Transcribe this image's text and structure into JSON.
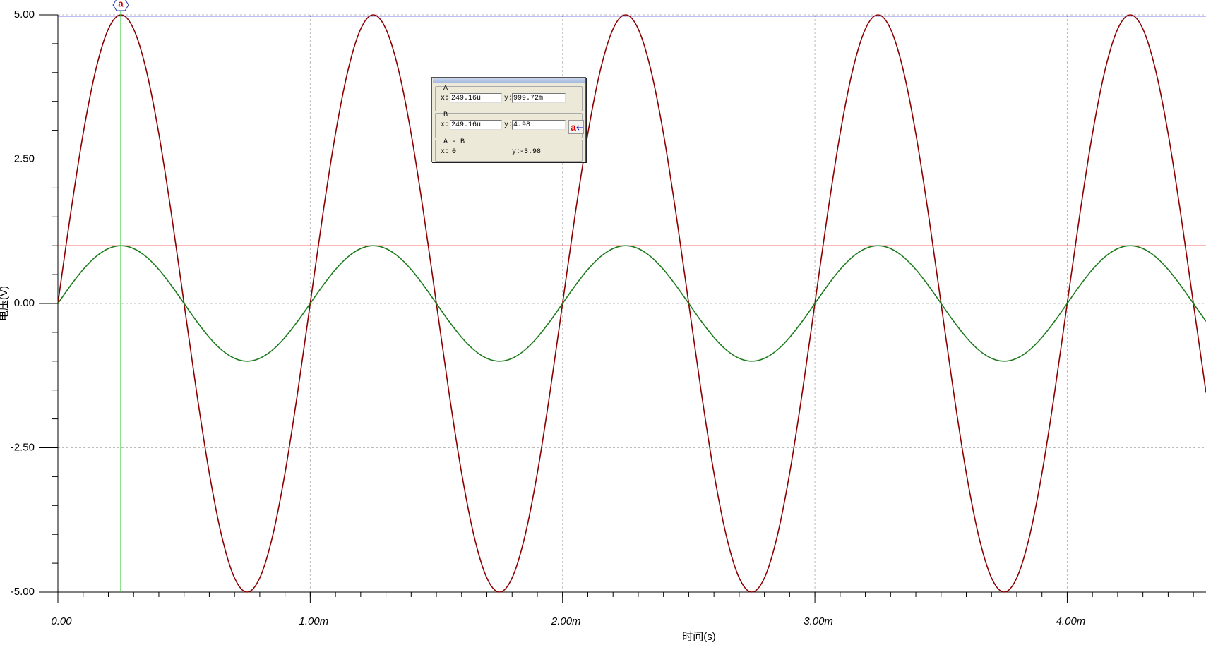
{
  "chart_data": {
    "type": "line",
    "y_label": "电压(V)",
    "x_label": "时间(s)",
    "x": [
      0,
      5e-05,
      0.0001,
      0.00015,
      0.0002,
      0.00025,
      0.0003,
      0.00035,
      0.0004,
      0.00045,
      0.0005,
      0.00055,
      0.0006,
      0.00065,
      0.0007,
      0.00075,
      0.0008,
      0.00085,
      0.0009,
      0.00095,
      0.001,
      0.00105,
      0.0011,
      0.00115,
      0.0012,
      0.00125,
      0.0013,
      0.00135,
      0.0014,
      0.00145,
      0.0015,
      0.00155,
      0.0016,
      0.00165,
      0.0017,
      0.00175,
      0.0018,
      0.00185,
      0.0019,
      0.00195,
      0.002,
      0.00205,
      0.0021,
      0.00215,
      0.0022,
      0.00225,
      0.0023,
      0.00235,
      0.0024,
      0.00245,
      0.0025,
      0.00255,
      0.0026,
      0.00265,
      0.0027,
      0.00275,
      0.0028,
      0.00285,
      0.0029,
      0.00295,
      0.003,
      0.00305,
      0.0031,
      0.00315,
      0.0032,
      0.00325,
      0.0033,
      0.00335,
      0.0034,
      0.00345,
      0.0035,
      0.00355,
      0.0036,
      0.00365,
      0.0037,
      0.00375,
      0.0038,
      0.00385,
      0.0039,
      0.00395,
      0.004,
      0.00405,
      0.0041,
      0.00415,
      0.0042,
      0.00425,
      0.0043,
      0.00435,
      0.0044,
      0.00445,
      0.0045,
      0.00455
    ],
    "series": [
      {
        "color": "#8b0000",
        "values": [
          0,
          1.545,
          2.939,
          4.045,
          4.755,
          5,
          4.755,
          4.045,
          2.939,
          1.545,
          0,
          -1.545,
          -2.939,
          -4.045,
          -4.755,
          -5,
          -4.755,
          -4.045,
          -2.939,
          -1.545,
          0,
          1.545,
          2.939,
          4.045,
          4.755,
          5,
          4.755,
          4.045,
          2.939,
          1.545,
          0,
          -1.545,
          -2.939,
          -4.045,
          -4.755,
          -5,
          -4.755,
          -4.045,
          -2.939,
          -1.545,
          0,
          1.545,
          2.939,
          4.045,
          4.755,
          5,
          4.755,
          4.045,
          2.939,
          1.545,
          0,
          -1.545,
          -2.939,
          -4.045,
          -4.755,
          -5,
          -4.755,
          -4.045,
          -2.939,
          -1.545,
          0,
          1.545,
          2.939,
          4.045,
          4.755,
          5,
          4.755,
          4.045,
          2.939,
          1.545,
          0,
          -1.545,
          -2.939,
          -4.045,
          -4.755,
          -5,
          -4.755,
          -4.045,
          -2.939,
          -1.545,
          0,
          1.545,
          2.939,
          4.045,
          4.755,
          5,
          4.755,
          4.045,
          2.939,
          1.545,
          0,
          -1.545
        ]
      },
      {
        "color": "#1b7a1b",
        "values": [
          0,
          0.309,
          0.588,
          0.809,
          0.951,
          1,
          0.951,
          0.809,
          0.588,
          0.309,
          0,
          -0.309,
          -0.588,
          -0.809,
          -0.951,
          -1,
          -0.951,
          -0.809,
          -0.588,
          -0.309,
          0,
          0.309,
          0.588,
          0.809,
          0.951,
          1,
          0.951,
          0.809,
          0.588,
          0.309,
          0,
          -0.309,
          -0.588,
          -0.809,
          -0.951,
          -1,
          -0.951,
          -0.809,
          -0.588,
          -0.309,
          0,
          0.309,
          0.588,
          0.809,
          0.951,
          1,
          0.951,
          0.809,
          0.588,
          0.309,
          0,
          -0.309,
          -0.588,
          -0.809,
          -0.951,
          -1,
          -0.951,
          -0.809,
          -0.588,
          -0.309,
          0,
          0.309,
          0.588,
          0.809,
          0.951,
          1,
          0.951,
          0.809,
          0.588,
          0.309,
          0,
          -0.309,
          -0.588,
          -0.809,
          -0.951,
          -1,
          -0.951,
          -0.809,
          -0.588,
          -0.309,
          0,
          0.309,
          0.588,
          0.809,
          0.951,
          1,
          0.951,
          0.809,
          0.588,
          0.309,
          0,
          -0.309
        ]
      }
    ],
    "xlim": [
      0,
      0.00455
    ],
    "ylim": [
      -5,
      5
    ],
    "xticks": [
      {
        "value": 0,
        "label": "0.00"
      },
      {
        "value": 0.001,
        "label": "1.00m"
      },
      {
        "value": 0.002,
        "label": "2.00m"
      },
      {
        "value": 0.003,
        "label": "3.00m"
      },
      {
        "value": 0.004,
        "label": "4.00m"
      }
    ],
    "yticks": [
      {
        "value": 5,
        "label": "5.00"
      },
      {
        "value": 2.5,
        "label": "2.50"
      },
      {
        "value": 0,
        "label": "0.00"
      },
      {
        "value": -2.5,
        "label": "-2.50"
      },
      {
        "value": -5,
        "label": "-5.00"
      }
    ],
    "xminorticks": [
      0,
      0.0001,
      0.0002,
      0.0003,
      0.0004,
      0.0005,
      0.0006,
      0.0007,
      0.0008,
      0.0009,
      0.001,
      0.0011,
      0.0012,
      0.0013,
      0.0014,
      0.0015,
      0.0016,
      0.0017,
      0.0018,
      0.0019,
      0.002,
      0.0021,
      0.0022,
      0.0023,
      0.0024,
      0.0025,
      0.0026,
      0.0027,
      0.0028,
      0.0029,
      0.003,
      0.0031,
      0.0032,
      0.0033,
      0.0034,
      0.0035,
      0.0036,
      0.0037,
      0.0038,
      0.0039,
      0.004,
      0.0041,
      0.0042,
      0.0043,
      0.0044,
      0.0045
    ],
    "yminorticks": [
      -5,
      -4.5,
      -4,
      -3.5,
      -3,
      -2.5,
      -2,
      -1.5,
      -1,
      -0.5,
      0,
      0.5,
      1,
      1.5,
      2,
      2.5,
      3,
      3.5,
      4,
      4.5,
      5
    ],
    "grid": true,
    "cursors": {
      "x": {
        "value": 0.00024916,
        "label": "249.16u"
      },
      "a_y": {
        "value": 0.99972,
        "label": "999.72m"
      },
      "b_y": {
        "value": 4.98,
        "label": "4.98"
      },
      "diff_x": 0,
      "diff_y": -3.98,
      "x_color": "#33cc33",
      "a_color": "#ff4040",
      "b_color": "#0000cc",
      "marker_label": "a"
    }
  },
  "cursor_box": {
    "a_title": "A",
    "b_title": "B",
    "diff_title": "A - B",
    "x_prefix": "x:",
    "y_prefix": "y:",
    "button": "a"
  }
}
